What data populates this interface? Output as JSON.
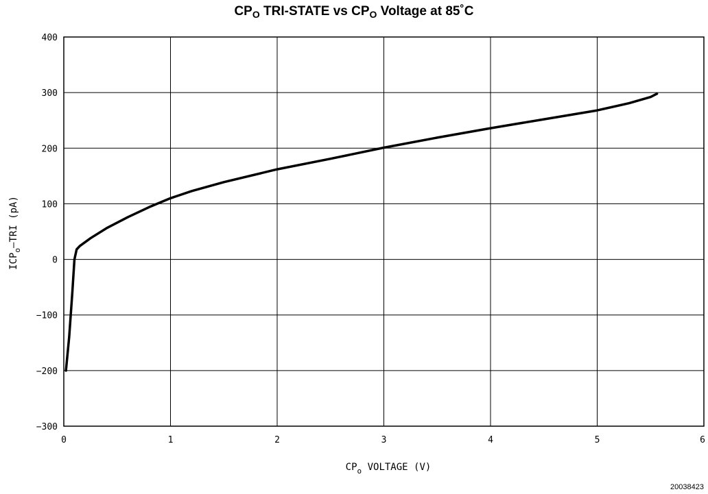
{
  "chart_data": {
    "type": "line",
    "title": {
      "part1": "CP",
      "part1_sub": "O",
      "part2": " TRI-STATE vs CP",
      "part2_sub": "O",
      "part3": " Voltage at 85˚C"
    },
    "xlabel": {
      "prefix": "CP",
      "sub": "o",
      "suffix": " VOLTAGE (V)"
    },
    "ylabel": {
      "prefix": "ICP",
      "sub": "o",
      "suffix": "—TRI (pA)"
    },
    "xlim": [
      0,
      6
    ],
    "ylim": [
      -300,
      400
    ],
    "xticks": [
      0,
      1,
      2,
      3,
      4,
      5,
      6
    ],
    "yticks": [
      -300,
      -200,
      -100,
      0,
      100,
      200,
      300,
      400
    ],
    "xtick_labels": [
      "0",
      "1",
      "2",
      "3",
      "4",
      "5",
      "6"
    ],
    "ytick_labels": [
      "−300",
      "−200",
      "−100",
      "0",
      "100",
      "200",
      "300",
      "400"
    ],
    "grid": true,
    "series": [
      {
        "color": "#000000",
        "x": [
          0.02,
          0.05,
          0.08,
          0.1,
          0.12,
          0.15,
          0.25,
          0.4,
          0.6,
          0.8,
          1.0,
          1.2,
          1.5,
          2.0,
          2.5,
          3.0,
          3.5,
          4.0,
          4.5,
          5.0,
          5.3,
          5.5,
          5.56
        ],
        "y": [
          -200,
          -140,
          -60,
          0,
          18,
          24,
          38,
          56,
          76,
          94,
          110,
          123,
          139,
          162,
          181,
          201,
          219,
          236,
          252,
          268,
          281,
          292,
          298
        ]
      }
    ],
    "figure_code": "20038423"
  }
}
